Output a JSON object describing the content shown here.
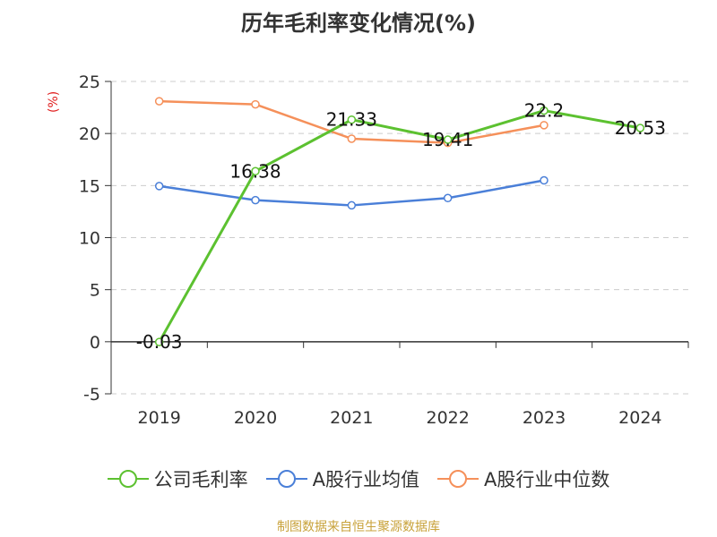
{
  "title": "历年毛利率变化情况(%)",
  "unit_label": "(%)",
  "source": "制图数据来自恒生聚源数据库",
  "chart_data": {
    "type": "line",
    "categories": [
      "2019",
      "2020",
      "2021",
      "2022",
      "2023",
      "2024"
    ],
    "ylim": [
      -5,
      25
    ],
    "yticks": [
      -5,
      0,
      5,
      10,
      15,
      20,
      25
    ],
    "grid": true,
    "legend_position": "bottom",
    "series": [
      {
        "name": "公司毛利率",
        "color": "#5cc130",
        "values": [
          -0.03,
          16.38,
          21.33,
          19.41,
          22.2,
          20.53
        ],
        "labels": [
          "-0.03",
          "16.38",
          "21.33",
          "19.41",
          "22.2",
          "20.53"
        ]
      },
      {
        "name": "A股行业均值",
        "color": "#4a7fd8",
        "values": [
          14.95,
          13.6,
          13.1,
          13.8,
          15.5,
          null
        ]
      },
      {
        "name": "A股行业中位数",
        "color": "#f5905a",
        "values": [
          23.1,
          22.8,
          19.5,
          19.1,
          20.8,
          null
        ]
      }
    ]
  }
}
